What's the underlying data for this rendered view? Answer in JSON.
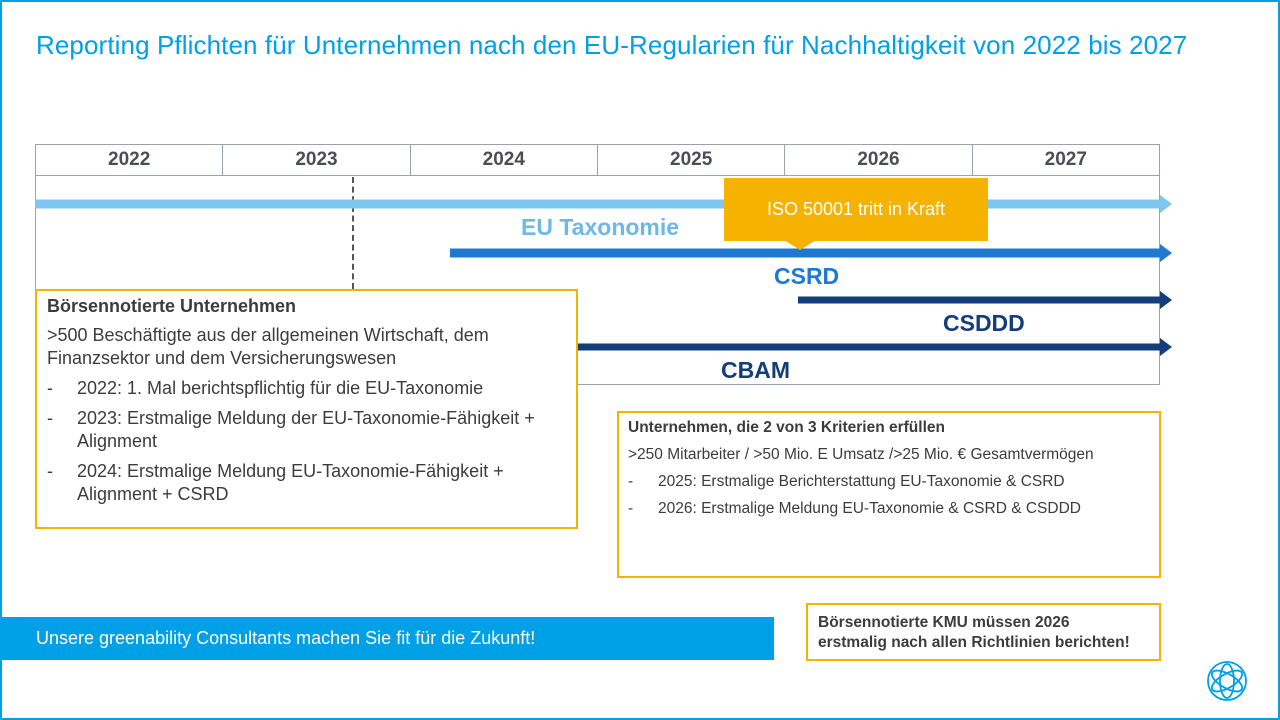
{
  "title": "Reporting Pflichten für Unternehmen nach den EU-Regularien für Nachhaltigkeit von 2022 bis 2027",
  "years": [
    "2022",
    "2023",
    "2024",
    "2025",
    "2026",
    "2027"
  ],
  "timeline": {
    "bars": [
      {
        "name": "EU Taxonomie",
        "start_year": 2022,
        "end_year": 2027,
        "color": "#7cc6ef"
      },
      {
        "name": "CSRD",
        "start_year": 2024,
        "end_year": 2027,
        "color": "#1f78d1"
      },
      {
        "name": "CSDDD",
        "start_year": 2026,
        "end_year": 2027,
        "color": "#133e7a"
      },
      {
        "name": "CBAM",
        "start_year": 2023,
        "end_year": 2027,
        "color": "#133e7a"
      }
    ],
    "milestone": "ISO 50001 tritt in Kraft",
    "divider_year": 2023
  },
  "listed_box": {
    "heading": "Börsennotierte Unternehmen",
    "description": ">500 Beschäftigte aus der allgemeinen Wirtschaft, dem Finanzsektor und dem Versicherungswesen",
    "bullet": "-",
    "items": [
      "2022: 1. Mal berichtspflichtig für die EU-Taxonomie",
      "2023: Erstmalige Meldung der EU-Taxonomie-Fähigkeit + Alignment",
      "2024: Erstmalige Meldung EU-Taxonomie-Fähigkeit + Alignment + CSRD"
    ]
  },
  "criteria_box": {
    "heading": "Unternehmen, die 2 von 3 Kriterien erfüllen",
    "description": ">250 Mitarbeiter / >50 Mio. E Umsatz />25 Mio. € Gesamtvermögen",
    "bullet": "-",
    "items": [
      "2025: Erstmalige Berichterstattung EU-Taxonomie & CSRD",
      "2026: Erstmalige Meldung EU-Taxonomie & CSRD & CSDDD"
    ]
  },
  "banner": "Unsere greenability Consultants machen Sie fit für die Zukunft!",
  "kmu_note": {
    "line1": "Börsennotierte KMU müssen 2026",
    "line2": "erstmalig nach allen Richtlinien berichten!"
  },
  "colors": {
    "accent": "#00a0e6",
    "highlight": "#f6b200"
  },
  "logo_icon": "atom-logo-icon"
}
